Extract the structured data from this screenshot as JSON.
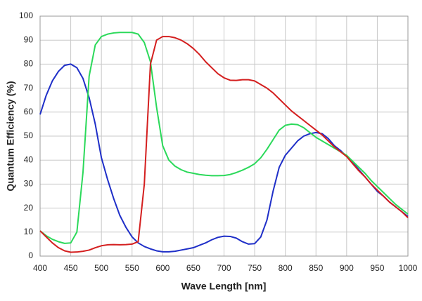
{
  "chart_data": {
    "type": "line",
    "x_label": "Wave Length [nm]",
    "y_label": "Quantum Efficiency (%)",
    "x": [
      400,
      410,
      420,
      430,
      440,
      450,
      460,
      470,
      480,
      490,
      500,
      510,
      520,
      530,
      540,
      550,
      560,
      570,
      580,
      590,
      600,
      610,
      620,
      630,
      640,
      650,
      660,
      670,
      680,
      690,
      700,
      710,
      720,
      730,
      740,
      750,
      760,
      770,
      780,
      790,
      800,
      810,
      820,
      830,
      840,
      850,
      860,
      870,
      880,
      890,
      900,
      910,
      920,
      930,
      940,
      950,
      960,
      970,
      980,
      990,
      1000
    ],
    "series": [
      {
        "color": "#1f2fc8",
        "values": [
          59,
          67,
          73,
          77,
          79.5,
          80,
          78.5,
          74,
          66,
          55,
          41,
          32,
          24,
          17,
          12,
          8,
          5.5,
          4,
          3,
          2.2,
          1.8,
          1.8,
          2,
          2.5,
          3,
          3.5,
          4.5,
          5.5,
          6.8,
          7.8,
          8.3,
          8.2,
          7.5,
          6,
          5,
          5.2,
          8,
          15,
          27,
          37,
          42,
          45,
          48,
          50,
          51,
          51.5,
          51,
          49,
          46,
          44,
          41.5,
          39,
          36,
          33,
          30,
          27,
          25,
          22.5,
          20.5,
          18.5,
          16.5
        ]
      },
      {
        "color": "#2bd95a",
        "values": [
          10.5,
          8.5,
          7,
          6,
          5.3,
          5.5,
          10,
          35,
          75,
          88,
          91.5,
          92.5,
          93,
          93.2,
          93.2,
          93.2,
          92.5,
          89,
          81,
          62,
          46,
          40,
          37.5,
          36,
          35,
          34.5,
          34,
          33.7,
          33.5,
          33.5,
          33.6,
          34,
          34.8,
          35.8,
          37,
          38.5,
          41,
          44.5,
          48.5,
          52.5,
          54.5,
          55,
          54.8,
          53.5,
          51.5,
          49.5,
          48,
          46.5,
          45,
          43.5,
          42,
          39.5,
          37,
          34.5,
          31.5,
          29,
          26.5,
          24,
          21.5,
          19.5,
          17.5
        ]
      },
      {
        "color": "#d41f1f",
        "values": [
          10.5,
          8,
          5.5,
          3.5,
          2.2,
          1.6,
          1.7,
          2,
          2.5,
          3.5,
          4.3,
          4.7,
          4.8,
          4.7,
          4.8,
          5,
          6,
          30,
          80,
          90,
          91.5,
          91.5,
          91,
          90,
          88.5,
          86.5,
          84,
          81,
          78.5,
          76,
          74.3,
          73.3,
          73.2,
          73.5,
          73.5,
          73,
          71.5,
          70,
          68,
          65.5,
          63,
          60.5,
          58.5,
          56.5,
          54.5,
          52.5,
          50.5,
          48,
          45.5,
          43.5,
          41.5,
          38.5,
          35.5,
          33,
          30,
          27.5,
          25,
          22.5,
          20.5,
          18.5,
          16
        ]
      }
    ],
    "xlim": [
      400,
      1000
    ],
    "xticks": [
      400,
      450,
      500,
      550,
      600,
      650,
      700,
      750,
      800,
      850,
      900,
      950,
      1000
    ],
    "ylim": [
      0,
      100
    ],
    "yticks": [
      0,
      10,
      20,
      30,
      40,
      50,
      60,
      70,
      80,
      90,
      100
    ],
    "grid": true
  }
}
